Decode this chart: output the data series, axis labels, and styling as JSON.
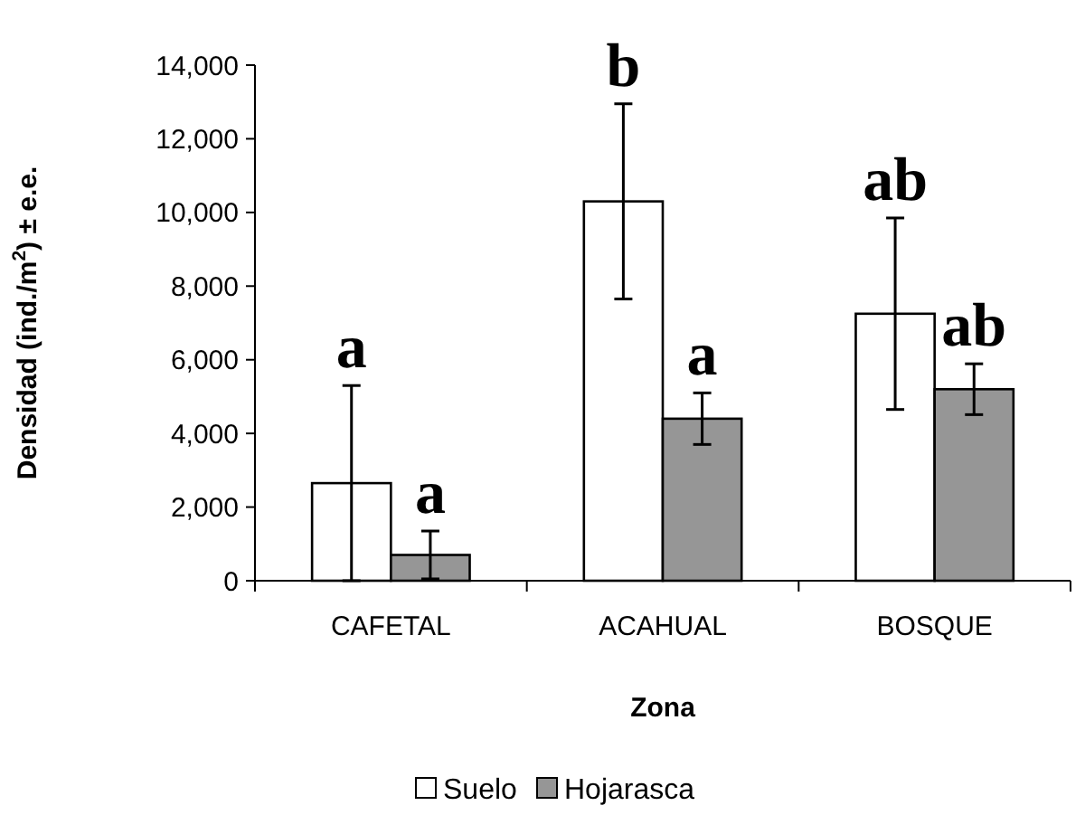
{
  "chart_data": {
    "type": "bar",
    "xlabel": "Zona",
    "ylabel": "Densidad (ind./m$^{2}$) ± e.e.",
    "categories": [
      "CAFETAL",
      "ACAHUAL",
      "BOSQUE"
    ],
    "series": [
      {
        "name": "Suelo",
        "color": "#ffffff",
        "values": [
          2650,
          10300,
          7250
        ],
        "errors": [
          2650,
          2650,
          2600
        ]
      },
      {
        "name": "Hojarasca",
        "color": "#969696",
        "values": [
          700,
          4400,
          5200
        ],
        "errors": [
          650,
          700,
          690
        ]
      }
    ],
    "ylim": [
      0,
      14000
    ],
    "yticks": [
      {
        "value": 0,
        "label": "0"
      },
      {
        "value": 2000,
        "label": "2,000"
      },
      {
        "value": 4000,
        "label": "4,000"
      },
      {
        "value": 6000,
        "label": "6,000"
      },
      {
        "value": 8000,
        "label": "8,000"
      },
      {
        "value": 10000,
        "label": "10,000"
      },
      {
        "value": 12000,
        "label": "12,000"
      },
      {
        "value": 14000,
        "label": "14,000"
      }
    ],
    "annotations": [
      "a",
      "a",
      "b",
      "a",
      "ab",
      "ab"
    ],
    "legend": "bottom",
    "grid": false
  }
}
